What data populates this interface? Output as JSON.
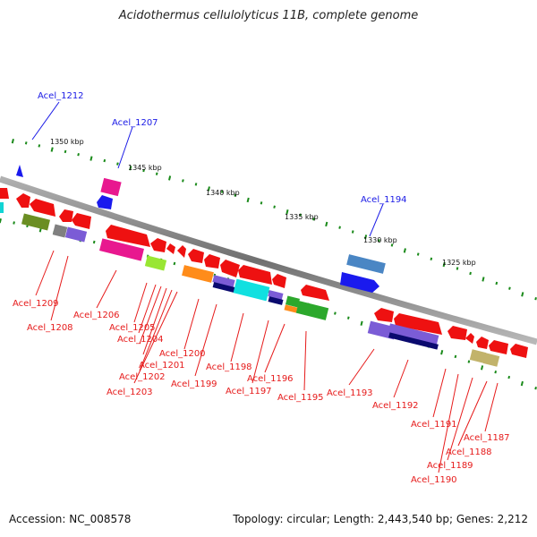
{
  "title": "Acidothermus cellulolyticus 11B, complete genome",
  "footer": {
    "accession": "Accession: NC_008578",
    "topology": "Topology: circular; Length: 2,443,540 bp; Genes: 2,212"
  },
  "colors": {
    "backbone": "#808080",
    "gene_forward_label": "#1a1ae6",
    "gene_reverse_label": "#e61a1a",
    "tick": "#1a8a1a"
  },
  "ruler": [
    "1350 kbp",
    "1345 kbp",
    "1340 kbp",
    "1335 kbp",
    "1330 kbp",
    "1325 kbp"
  ],
  "genes": [
    "Acel_1212",
    "Acel_1207",
    "Acel_1194",
    "Acel_1209",
    "Acel_1208",
    "Acel_1206",
    "Acel_1205",
    "Acel_1204",
    "Acel_1203",
    "Acel_1202",
    "Acel_1201",
    "Acel_1200",
    "Acel_1199",
    "Acel_1198",
    "Acel_1197",
    "Acel_1196",
    "Acel_1195",
    "Acel_1193",
    "Acel_1192",
    "Acel_1191",
    "Acel_1190",
    "Acel_1189",
    "Acel_1188",
    "Acel_1187"
  ]
}
